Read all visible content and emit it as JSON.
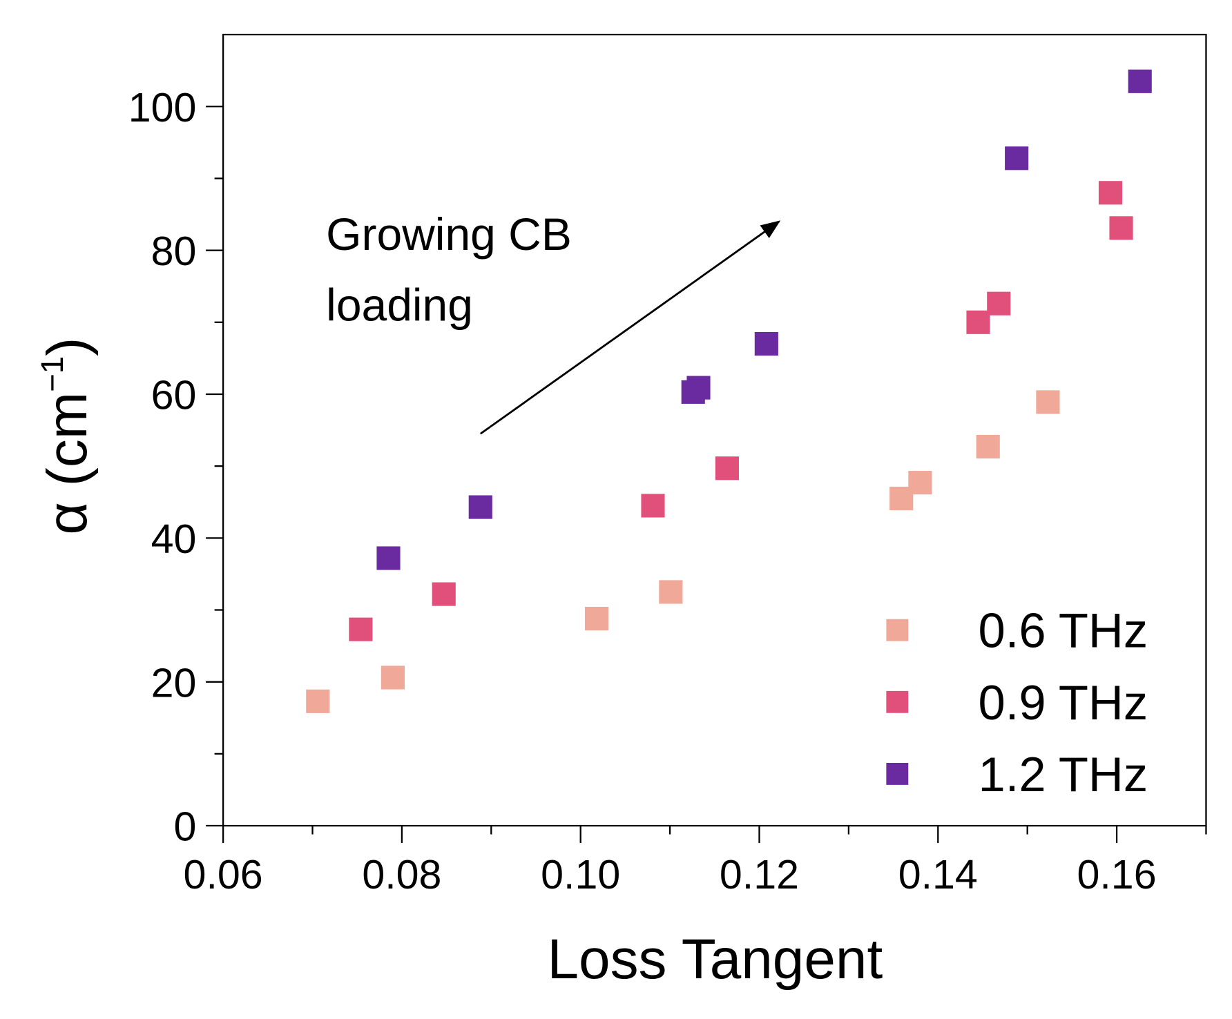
{
  "chart_data": {
    "type": "scatter",
    "title": "",
    "xlabel": "Loss Tangent",
    "ylabel_main": "α (cm",
    "ylabel_sup": "−1",
    "ylabel_close": ")",
    "xlim": [
      0.06,
      0.17
    ],
    "ylim": [
      0,
      110
    ],
    "x_ticks": [
      0.06,
      0.08,
      0.1,
      0.12,
      0.14,
      0.16
    ],
    "x_tick_labels": [
      "0.06",
      "0.08",
      "0.10",
      "0.12",
      "0.14",
      "0.16"
    ],
    "y_ticks": [
      0,
      20,
      40,
      60,
      80,
      100
    ],
    "y_tick_labels": [
      "0",
      "20",
      "40",
      "60",
      "80",
      "100"
    ],
    "grid": false,
    "legend_position": "bottom-right",
    "annotation": {
      "lines": [
        "Growing CB",
        "loading"
      ],
      "arrow_from": [
        0.0888,
        54.5
      ],
      "arrow_to": [
        0.1222,
        84.0
      ]
    },
    "series": [
      {
        "name": "0.6 THz",
        "color": "#F0A898",
        "x": [
          0.0706,
          0.079,
          0.1018,
          0.1101,
          0.1359,
          0.138,
          0.1456,
          0.1523
        ],
        "y": [
          17.3,
          20.6,
          28.8,
          32.5,
          45.5,
          47.7,
          52.7,
          58.9
        ]
      },
      {
        "name": "0.9 THz",
        "color": "#E0507A",
        "x": [
          0.0754,
          0.0847,
          0.1081,
          0.1164,
          0.1445,
          0.1468,
          0.1593,
          0.1605
        ],
        "y": [
          27.3,
          32.2,
          44.5,
          49.7,
          70.0,
          72.6,
          88.0,
          83.1
        ]
      },
      {
        "name": "1.2 THz",
        "color": "#6A2AA0",
        "x": [
          0.0785,
          0.0888,
          0.1126,
          0.1132,
          0.1208,
          0.1488,
          0.1626
        ],
        "y": [
          37.2,
          44.3,
          60.3,
          60.9,
          67.0,
          92.8,
          103.5
        ]
      }
    ]
  }
}
